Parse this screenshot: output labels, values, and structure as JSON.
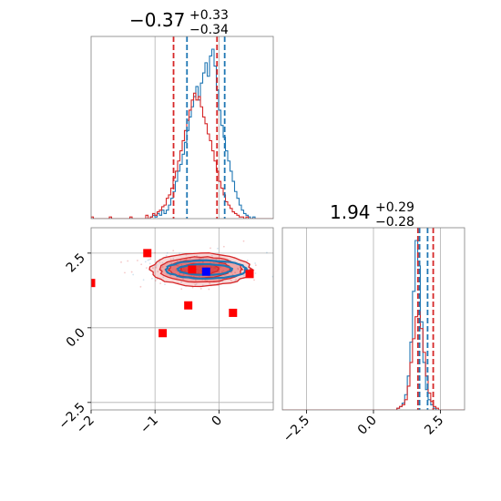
{
  "chart_data": [
    {
      "type": "histogram",
      "panel": "top-left",
      "title": {
        "value": "−0.37",
        "sup": "+0.33",
        "sub": "−0.34"
      },
      "xlim": [
        -2.0,
        0.85
      ],
      "grid": true,
      "vlines": [
        {
          "x": -0.71,
          "color": "#d62728",
          "style": "dashed"
        },
        {
          "x": -0.03,
          "color": "#d62728",
          "style": "dashed"
        },
        {
          "x": -0.5,
          "color": "#1f77b4",
          "style": "dashed"
        },
        {
          "x": 0.09,
          "color": "#1f77b4",
          "style": "dashed"
        }
      ],
      "series": [
        {
          "color": "#1f77b4",
          "counts": [
            0,
            0,
            0,
            0,
            0,
            0,
            0,
            0,
            0,
            0,
            0,
            0,
            0,
            0,
            0,
            0,
            0,
            0,
            0,
            0,
            0,
            0,
            0,
            0,
            0,
            0,
            1,
            2,
            1,
            3,
            2,
            5,
            3,
            5,
            8,
            12,
            16,
            22,
            28,
            32,
            38,
            45,
            52,
            60,
            66,
            72,
            78,
            70,
            80,
            86,
            92,
            84,
            96,
            100,
            90,
            76,
            64,
            55,
            48,
            40,
            34,
            28,
            22,
            16,
            12,
            8,
            5,
            3,
            2,
            1,
            0,
            1,
            0,
            0,
            0,
            0,
            0,
            0,
            0,
            0
          ]
        },
        {
          "color": "#d62728",
          "counts": [
            1,
            0,
            0,
            0,
            0,
            0,
            0,
            0,
            1,
            0,
            0,
            0,
            0,
            0,
            0,
            0,
            0,
            1,
            0,
            0,
            0,
            0,
            0,
            0,
            2,
            0,
            1,
            3,
            2,
            4,
            5,
            7,
            8,
            12,
            14,
            18,
            24,
            28,
            34,
            40,
            46,
            52,
            58,
            64,
            70,
            74,
            70,
            72,
            66,
            60,
            56,
            50,
            46,
            40,
            34,
            28,
            22,
            18,
            14,
            10,
            8,
            6,
            4,
            3,
            2,
            1,
            1,
            0,
            1,
            0,
            0,
            0,
            0,
            0,
            0,
            0,
            0,
            0,
            0,
            0
          ]
        }
      ]
    },
    {
      "type": "scatter",
      "panel": "bottom-left",
      "xlim": [
        -2.0,
        0.85
      ],
      "ylim": [
        -2.75,
        3.35
      ],
      "xticks": [
        "−2",
        "−1",
        "0"
      ],
      "yticks": [
        "−2.5",
        "0.0",
        "2.5"
      ],
      "grid": true,
      "contours": [
        {
          "color": "#d62728",
          "fill": "rgba(214,39,40,0.18)",
          "cx": -0.28,
          "cy": 1.95,
          "rx": 0.78,
          "ry": 0.55
        },
        {
          "color": "#d62728",
          "fill": "rgba(214,39,40,0.28)",
          "cx": -0.28,
          "cy": 1.95,
          "rx": 0.64,
          "ry": 0.42
        },
        {
          "color": "#d62728",
          "fill": "rgba(214,39,40,0.40)",
          "cx": -0.3,
          "cy": 1.97,
          "rx": 0.48,
          "ry": 0.3
        },
        {
          "color": "#d62728",
          "fill": "rgba(214,39,40,0.55)",
          "cx": -0.3,
          "cy": 1.97,
          "rx": 0.3,
          "ry": 0.18
        },
        {
          "color": "#1f77b4",
          "fill": "none",
          "cx": -0.2,
          "cy": 1.95,
          "rx": 0.62,
          "ry": 0.3
        },
        {
          "color": "#1f77b4",
          "fill": "none",
          "cx": -0.22,
          "cy": 1.95,
          "rx": 0.42,
          "ry": 0.18
        }
      ],
      "red_squares": [
        {
          "x": -2.0,
          "y": 1.5
        },
        {
          "x": -1.12,
          "y": 2.5
        },
        {
          "x": -0.88,
          "y": -0.18
        },
        {
          "x": -0.48,
          "y": 0.75
        },
        {
          "x": -0.42,
          "y": 1.95
        },
        {
          "x": 0.22,
          "y": 0.5
        },
        {
          "x": 0.48,
          "y": 1.8
        }
      ],
      "blue_squares": [
        {
          "x": -0.2,
          "y": 1.88
        }
      ]
    },
    {
      "type": "histogram",
      "panel": "bottom-right",
      "title": {
        "value": "1.94",
        "sup": "+0.29",
        "sub": "−0.28"
      },
      "xlim": [
        -3.4,
        3.4
      ],
      "xticks": [
        "−2.5",
        "0.0",
        "2.5"
      ],
      "grid": true,
      "vlines": [
        {
          "x": 1.66,
          "color": "#d62728",
          "style": "dashed"
        },
        {
          "x": 2.23,
          "color": "#d62728",
          "style": "dashed"
        },
        {
          "x": 1.72,
          "color": "#1f77b4",
          "style": "dashed"
        },
        {
          "x": 2.02,
          "color": "#1f77b4",
          "style": "dashed"
        }
      ],
      "series": [
        {
          "color": "#1f77b4",
          "counts": [
            0,
            0,
            0,
            0,
            0,
            0,
            0,
            0,
            0,
            0,
            0,
            0,
            0,
            0,
            0,
            0,
            0,
            0,
            0,
            0,
            0,
            0,
            0,
            0,
            0,
            0,
            0,
            0,
            0,
            0,
            0,
            0,
            0,
            0,
            0,
            0,
            0,
            0,
            0,
            0,
            0,
            0,
            0,
            0,
            1,
            2,
            4,
            9,
            20,
            40,
            70,
            100,
            85,
            52,
            28,
            12,
            6,
            3,
            1,
            0,
            0,
            0,
            0,
            0,
            0,
            0,
            0,
            0,
            0,
            0
          ]
        },
        {
          "color": "#d62728",
          "counts": [
            0,
            0,
            0,
            0,
            0,
            0,
            0,
            0,
            0,
            0,
            0,
            0,
            0,
            0,
            0,
            0,
            0,
            0,
            0,
            0,
            0,
            0,
            0,
            0,
            0,
            0,
            0,
            0,
            0,
            0,
            0,
            0,
            0,
            0,
            0,
            0,
            0,
            0,
            0,
            0,
            0,
            0,
            0,
            0,
            1,
            2,
            3,
            6,
            14,
            28,
            42,
            55,
            58,
            48,
            34,
            20,
            10,
            5,
            2,
            1,
            0,
            0,
            0,
            0,
            0,
            0,
            0,
            0,
            0,
            0
          ]
        }
      ]
    }
  ]
}
